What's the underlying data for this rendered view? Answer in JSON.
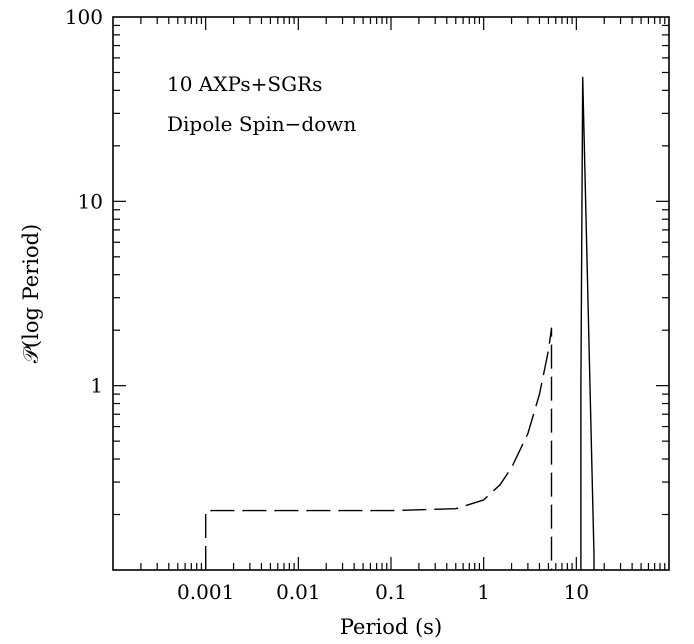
{
  "chart_data": {
    "type": "line",
    "xlabel": "Period (s)",
    "ylabel": "𝒫(log Period)",
    "xscale": "log",
    "yscale": "log",
    "xlim": [
      0.0001,
      100
    ],
    "ylim": [
      0.1,
      100
    ],
    "grid": false,
    "legend": "none",
    "x_ticks": [
      {
        "value": 0.001,
        "label": "0.001"
      },
      {
        "value": 0.01,
        "label": "0.01"
      },
      {
        "value": 0.1,
        "label": "0.1"
      },
      {
        "value": 1,
        "label": "1"
      },
      {
        "value": 10,
        "label": "10"
      }
    ],
    "y_ticks": [
      {
        "value": 1,
        "label": "1"
      },
      {
        "value": 10,
        "label": "10"
      },
      {
        "value": 100,
        "label": "100"
      }
    ],
    "annotations": [
      "10 AXPs+SGRs",
      "Dipole Spin−down"
    ],
    "series": [
      {
        "style": "dashed",
        "x": [
          0.001,
          0.001,
          0.01,
          0.1,
          0.5,
          1.0,
          1.5,
          2.0,
          3.0,
          4.0,
          5.0,
          5.4,
          5.4
        ],
        "y": [
          0.1,
          0.21,
          0.21,
          0.21,
          0.215,
          0.24,
          0.29,
          0.36,
          0.55,
          0.9,
          1.55,
          2.05,
          0.1
        ]
      },
      {
        "style": "solid",
        "x": [
          11.2,
          11.2,
          11.7,
          15.5,
          15.5
        ],
        "y": [
          0.1,
          1.0,
          47,
          0.12,
          0.1
        ]
      }
    ]
  }
}
